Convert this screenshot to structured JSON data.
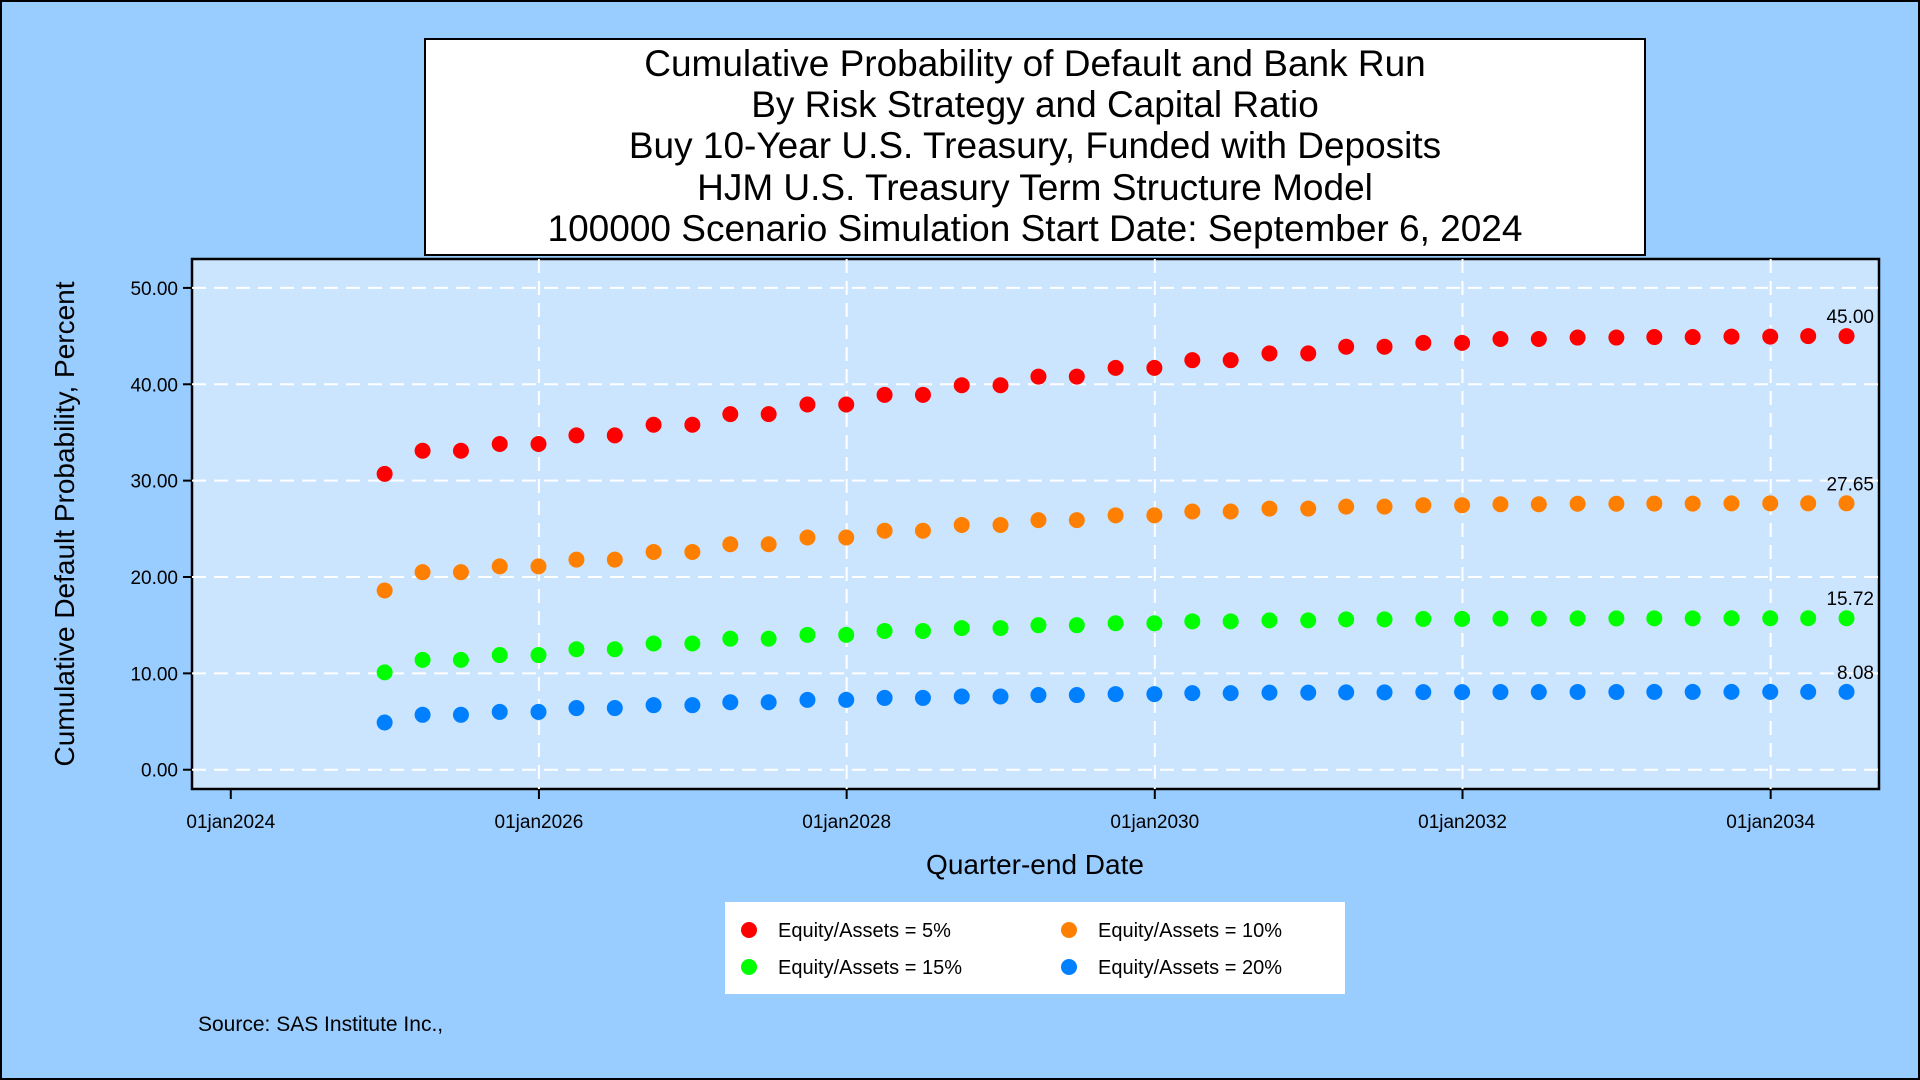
{
  "chart_data": {
    "type": "scatter",
    "title": [
      "Cumulative Probability of Default and Bank Run",
      "By Risk Strategy and Capital Ratio",
      "Buy 10-Year U.S. Treasury, Funded with Deposits",
      "HJM U.S. Treasury Term Structure Model",
      "100000 Scenario Simulation Start Date: September 6, 2024"
    ],
    "xlabel": "Quarter-end Date",
    "ylabel": "Cumulative Default Probability, Percent",
    "x_axis": {
      "type": "date",
      "range": [
        "2023-10-01",
        "2034-09-15"
      ],
      "ticks": [
        "2024-01-01",
        "2026-01-01",
        "2028-01-01",
        "2030-01-01",
        "2032-01-01",
        "2034-01-01"
      ],
      "tick_labels": [
        "01jan2024",
        "01jan2026",
        "01jan2028",
        "01jan2030",
        "01jan2032",
        "01jan2034"
      ]
    },
    "y_axis": {
      "range": [
        -2,
        53
      ],
      "ticks": [
        0,
        10,
        20,
        30,
        40,
        50
      ],
      "tick_labels": [
        "0.00",
        "10.00",
        "20.00",
        "30.00",
        "40.00",
        "50.00"
      ]
    },
    "grid": true,
    "legend_position": "bottom",
    "x": [
      "2024-12-31",
      "2025-03-31",
      "2025-06-30",
      "2025-09-30",
      "2025-12-31",
      "2026-03-31",
      "2026-06-30",
      "2026-09-30",
      "2026-12-31",
      "2027-03-31",
      "2027-06-30",
      "2027-09-30",
      "2027-12-31",
      "2028-03-31",
      "2028-06-30",
      "2028-09-30",
      "2028-12-31",
      "2029-03-31",
      "2029-06-30",
      "2029-09-30",
      "2029-12-31",
      "2030-03-31",
      "2030-06-30",
      "2030-09-30",
      "2030-12-31",
      "2031-03-31",
      "2031-06-30",
      "2031-09-30",
      "2031-12-31",
      "2032-03-31",
      "2032-06-30",
      "2032-09-30",
      "2032-12-31",
      "2033-03-31",
      "2033-06-30",
      "2033-09-30",
      "2033-12-31",
      "2034-03-31",
      "2034-06-30"
    ],
    "series": [
      {
        "name": "Equity/Assets = 5%",
        "color": "#ff0000",
        "end_label": "45.00",
        "values": [
          30.7,
          33.1,
          33.1,
          33.8,
          33.8,
          34.7,
          34.7,
          35.8,
          35.8,
          36.9,
          36.9,
          37.9,
          37.9,
          38.9,
          38.9,
          39.9,
          39.9,
          40.8,
          40.8,
          41.7,
          41.7,
          42.5,
          42.5,
          43.2,
          43.2,
          43.9,
          43.9,
          44.3,
          44.3,
          44.7,
          44.7,
          44.85,
          44.85,
          44.9,
          44.9,
          44.95,
          44.95,
          45.0,
          45.0
        ]
      },
      {
        "name": "Equity/Assets = 10%",
        "color": "#ff7f00",
        "end_label": "27.65",
        "values": [
          18.6,
          20.5,
          20.5,
          21.1,
          21.1,
          21.8,
          21.8,
          22.6,
          22.6,
          23.4,
          23.4,
          24.1,
          24.1,
          24.8,
          24.8,
          25.4,
          25.4,
          25.9,
          25.9,
          26.4,
          26.4,
          26.8,
          26.8,
          27.1,
          27.1,
          27.3,
          27.3,
          27.45,
          27.45,
          27.55,
          27.55,
          27.6,
          27.6,
          27.62,
          27.62,
          27.64,
          27.64,
          27.65,
          27.65
        ]
      },
      {
        "name": "Equity/Assets = 15%",
        "color": "#00ff00",
        "end_label": "15.72",
        "values": [
          10.1,
          11.4,
          11.4,
          11.9,
          11.9,
          12.5,
          12.5,
          13.1,
          13.1,
          13.6,
          13.6,
          14.0,
          14.0,
          14.4,
          14.4,
          14.7,
          14.7,
          15.0,
          15.0,
          15.2,
          15.2,
          15.4,
          15.4,
          15.5,
          15.5,
          15.6,
          15.6,
          15.65,
          15.65,
          15.68,
          15.68,
          15.7,
          15.7,
          15.71,
          15.71,
          15.72,
          15.72,
          15.72,
          15.72
        ]
      },
      {
        "name": "Equity/Assets = 20%",
        "color": "#0080ff",
        "end_label": "8.08",
        "values": [
          4.9,
          5.7,
          5.7,
          6.0,
          6.0,
          6.4,
          6.4,
          6.7,
          6.7,
          7.0,
          7.0,
          7.25,
          7.25,
          7.45,
          7.45,
          7.6,
          7.6,
          7.75,
          7.75,
          7.85,
          7.85,
          7.95,
          7.95,
          8.0,
          8.0,
          8.03,
          8.03,
          8.05,
          8.05,
          8.06,
          8.06,
          8.07,
          8.07,
          8.075,
          8.075,
          8.08,
          8.08,
          8.08,
          8.08
        ]
      }
    ],
    "footnote": "Source: SAS Institute Inc.,"
  },
  "colors": {
    "background": "#99ccff",
    "plot_area": "#cce5ff",
    "grid": "#ffffff"
  }
}
